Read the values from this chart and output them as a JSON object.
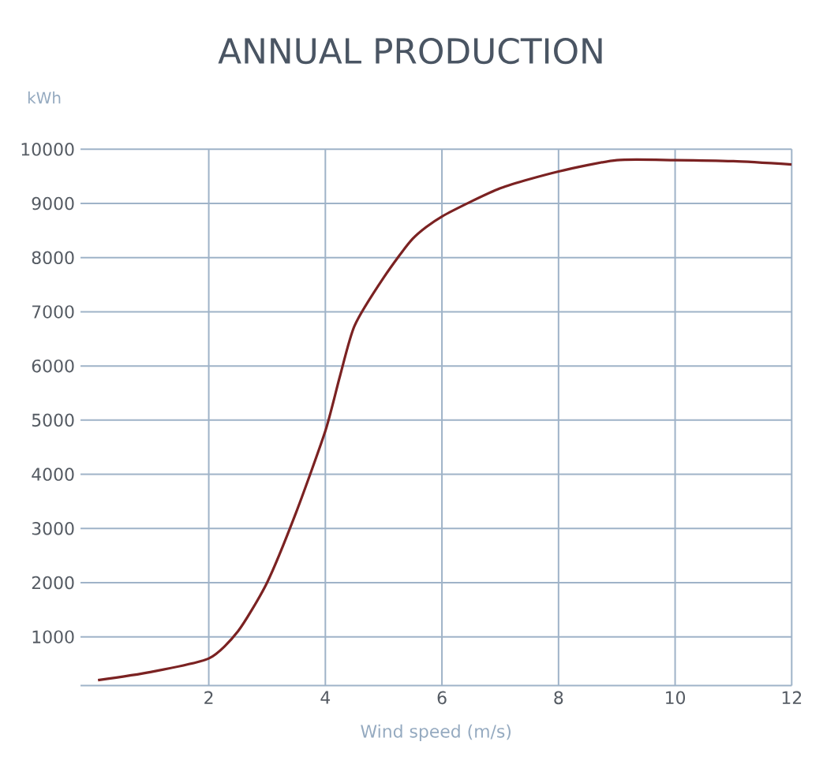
{
  "chart_data": {
    "type": "line",
    "title": "ANNUAL PRODUCTION",
    "xlabel": "Wind speed (m/s)",
    "ylabel": "kWh",
    "x": [
      0.1,
      1,
      2,
      2.5,
      3,
      3.5,
      4,
      4.25,
      4.5,
      5,
      5.5,
      6,
      7,
      8,
      9,
      10,
      11,
      12
    ],
    "series": [
      {
        "color": "#7b2222",
        "values": [
          200,
          350,
          600,
          1100,
          2000,
          3300,
          4800,
          5810,
          6740,
          7630,
          8350,
          8760,
          9280,
          9590,
          9800,
          9800,
          9780,
          9720
        ]
      }
    ],
    "xlim": [
      -0.2,
      12
    ],
    "ylim": [
      100,
      10000
    ],
    "xticks": [
      2,
      4,
      6,
      8,
      10,
      12
    ],
    "yticks": [
      1000,
      2000,
      3000,
      4000,
      5000,
      6000,
      7000,
      8000,
      9000,
      10000
    ],
    "grid": true,
    "marker": "none",
    "line_style": "solid"
  }
}
